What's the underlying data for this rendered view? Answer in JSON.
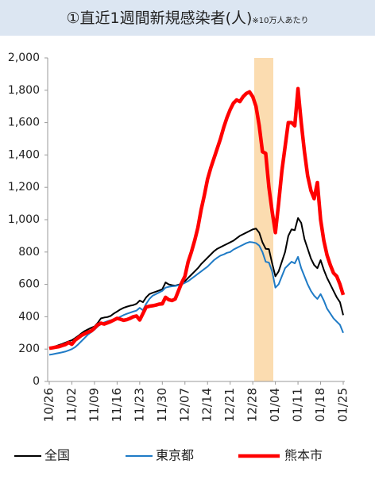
{
  "chart_data": {
    "type": "line",
    "title": "①直近1週間新規感染者(人)",
    "note": "※10万人あたり",
    "categories": [
      "10/26",
      null,
      null,
      null,
      null,
      null,
      null,
      "11/02",
      null,
      null,
      null,
      null,
      null,
      null,
      "11/09",
      null,
      null,
      null,
      null,
      null,
      null,
      "11/16",
      null,
      null,
      null,
      null,
      null,
      null,
      "11/23",
      null,
      null,
      null,
      null,
      null,
      null,
      "11/30",
      null,
      null,
      null,
      null,
      null,
      null,
      "12/07",
      null,
      null,
      null,
      null,
      null,
      null,
      "12/14",
      null,
      null,
      null,
      null,
      null,
      null,
      "12/21",
      null,
      null,
      null,
      null,
      null,
      null,
      "12/28",
      null,
      null,
      null,
      null,
      null,
      null,
      "01/04",
      null,
      null,
      null,
      null,
      null,
      null,
      "01/11",
      null,
      null,
      null,
      null,
      null,
      null,
      "01/18",
      null,
      null,
      null,
      null,
      null,
      null,
      "01/25"
    ],
    "series": [
      {
        "name": "全国",
        "color": "#000000",
        "width": 2,
        "values": [
          205,
          210,
          218,
          225,
          232,
          240,
          248,
          255,
          268,
          282,
          298,
          312,
          322,
          332,
          340,
          362,
          390,
          395,
          398,
          405,
          420,
          432,
          445,
          455,
          462,
          468,
          472,
          480,
          500,
          490,
          520,
          540,
          548,
          555,
          562,
          570,
          612,
          600,
          595,
          592,
          598,
          605,
          620,
          640,
          660,
          680,
          700,
          725,
          745,
          765,
          785,
          805,
          820,
          830,
          840,
          850,
          860,
          870,
          885,
          900,
          910,
          920,
          930,
          940,
          945,
          920,
          860,
          820,
          818,
          730,
          650,
          680,
          740,
          800,
          900,
          940,
          935,
          1010,
          980,
          880,
          820,
          760,
          720,
          700,
          750,
          690,
          640,
          600,
          560,
          520,
          490,
          410
        ]
      },
      {
        "name": "東京都",
        "color": "#1f7bc6",
        "width": 2,
        "values": [
          165,
          168,
          172,
          176,
          180,
          185,
          192,
          200,
          212,
          230,
          250,
          270,
          290,
          305,
          320,
          340,
          355,
          365,
          372,
          378,
          385,
          390,
          400,
          410,
          418,
          425,
          432,
          438,
          455,
          440,
          480,
          510,
          530,
          540,
          550,
          560,
          580,
          585,
          588,
          590,
          595,
          600,
          610,
          620,
          635,
          650,
          665,
          680,
          695,
          710,
          730,
          750,
          765,
          778,
          785,
          795,
          800,
          815,
          825,
          835,
          845,
          855,
          862,
          860,
          855,
          840,
          800,
          740,
          735,
          680,
          580,
          600,
          650,
          700,
          720,
          740,
          730,
          770,
          700,
          650,
          600,
          560,
          530,
          510,
          540,
          500,
          450,
          420,
          390,
          370,
          350,
          300
        ]
      },
      {
        "name": "熊本市",
        "color": "#ff0000",
        "width": 4.5,
        "values": [
          205,
          208,
          212,
          215,
          222,
          228,
          240,
          230,
          255,
          270,
          285,
          295,
          305,
          312,
          330,
          350,
          360,
          355,
          362,
          370,
          380,
          390,
          385,
          378,
          382,
          390,
          400,
          405,
          380,
          420,
          460,
          465,
          468,
          472,
          478,
          480,
          520,
          505,
          500,
          510,
          560,
          610,
          650,
          740,
          800,
          870,
          950,
          1060,
          1150,
          1250,
          1320,
          1380,
          1440,
          1500,
          1570,
          1630,
          1680,
          1720,
          1740,
          1730,
          1760,
          1780,
          1790,
          1760,
          1700,
          1580,
          1420,
          1410,
          1200,
          1050,
          920,
          1100,
          1300,
          1450,
          1600,
          1600,
          1580,
          1810,
          1600,
          1420,
          1270,
          1180,
          1130,
          1230,
          1000,
          870,
          780,
          720,
          670,
          650,
          600,
          535
        ]
      }
    ],
    "ylim": [
      0,
      2000
    ],
    "yticks": [
      0,
      200,
      400,
      600,
      800,
      {
        "value": 1000,
        "label": "1,000"
      },
      {
        "value": 1200,
        "label": "1,200"
      },
      {
        "value": 1400,
        "label": "1,400"
      },
      {
        "value": 1600,
        "label": "1,600"
      },
      {
        "value": 1800,
        "label": "1,800"
      },
      {
        "value": 2000,
        "label": "2,000"
      }
    ],
    "grid": false,
    "legend": "bottom"
  }
}
